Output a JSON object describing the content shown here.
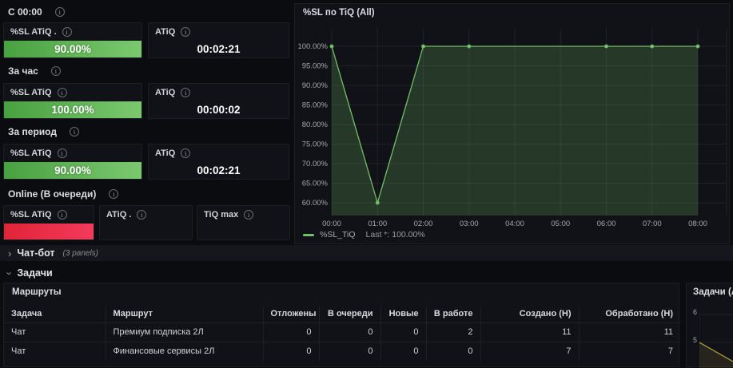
{
  "sections": [
    {
      "label": "С 00:00",
      "panels": [
        {
          "title": "%SL ATiQ .",
          "value": "90.00%"
        },
        {
          "title": "ATiQ",
          "value": "00:02:21"
        }
      ]
    },
    {
      "label": "За час",
      "panels": [
        {
          "title": "%SL ATiQ",
          "value": "100.00%"
        },
        {
          "title": "ATiQ",
          "value": "00:00:02"
        }
      ]
    },
    {
      "label": "За период",
      "panels": [
        {
          "title": "%SL ATiQ",
          "value": "90.00%"
        },
        {
          "title": "ATiQ",
          "value": "00:02:21"
        }
      ]
    },
    {
      "label": "Online (В очереди)",
      "panels": [
        {
          "title": "%SL ATiQ",
          "value": ""
        },
        {
          "title": "ATiQ .",
          "value": ""
        },
        {
          "title": "TiQ max",
          "value": ""
        }
      ]
    }
  ],
  "rows": {
    "chatbot": {
      "label": "Чат-бот",
      "meta": "(3 panels)",
      "collapsed": true
    },
    "tasks": {
      "label": "Задачи",
      "collapsed": false
    }
  },
  "table": {
    "title": "Маршруты",
    "columns": [
      "Задача",
      "Маршрут",
      "Отложены",
      "В очереди",
      "Новые",
      "В работе",
      "Создано (Н)",
      "Обработано (Н)"
    ],
    "rows": [
      [
        "Чат",
        "Премиум подписка 2Л",
        "0",
        "0",
        "0",
        "2",
        "11",
        "11"
      ],
      [
        "Чат",
        "Финансовые сервисы 2Л",
        "0",
        "0",
        "0",
        "0",
        "7",
        "7"
      ]
    ]
  },
  "chart_data": [
    {
      "type": "area",
      "title": "%SL по TiQ (All)",
      "x": [
        "00:00",
        "01:00",
        "02:00",
        "03:00",
        "04:00",
        "05:00",
        "06:00",
        "07:00",
        "08:00"
      ],
      "series": [
        {
          "name": "%SL_TiQ",
          "values": [
            100,
            60,
            100,
            100,
            100,
            100,
            100,
            100,
            100
          ]
        }
      ],
      "yticks": [
        "100.00%",
        "95.00%",
        "90.00%",
        "85.00%",
        "80.00%",
        "75.00%",
        "70.00%",
        "65.00%",
        "60.00%"
      ],
      "ylim": [
        57.5,
        104.5
      ],
      "grid": true,
      "legend": {
        "position": "bottom",
        "label": "%SL_TiQ",
        "calc": "Last *: 100.00%"
      },
      "marker_indices": [
        0,
        1,
        2,
        3,
        6,
        7,
        8
      ]
    },
    {
      "type": "line",
      "title": "Задачи (All)",
      "yticks": [
        "6",
        "5"
      ],
      "x": [
        0,
        1
      ],
      "values": [
        5,
        4.3
      ]
    }
  ],
  "colors": {
    "green_start": "#48a13f",
    "green_end": "#7bc96f",
    "red_start": "#e02438",
    "red_end": "#f43a5b",
    "series_green": "#73bf69",
    "series_yellow": "#b9a33c",
    "grid_line": "rgba(255,255,255,0.07)",
    "axis_text": "#a4a7ae"
  }
}
